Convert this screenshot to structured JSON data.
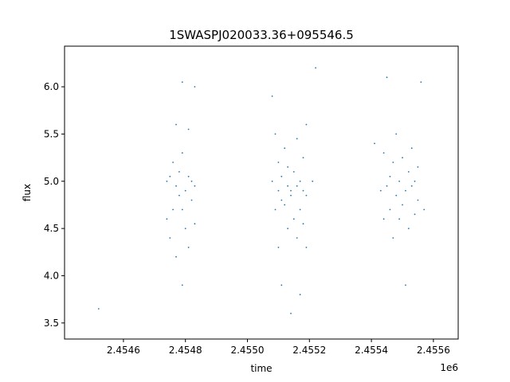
{
  "chart_data": {
    "type": "scatter",
    "title": "1SWASPJ020033.36+095546.5",
    "xlabel": "time",
    "ylabel": "flux",
    "x_offset_label": "1e6",
    "xlim": [
      2.45441,
      2.45568
    ],
    "ylim": [
      3.33,
      6.43
    ],
    "x_ticks": [
      2.4546,
      2.4548,
      2.455,
      2.4552,
      2.4554,
      2.4556
    ],
    "x_tick_labels": [
      "2.4546",
      "2.4548",
      "2.4550",
      "2.4552",
      "2.4554",
      "2.4556"
    ],
    "y_ticks": [
      3.5,
      4.0,
      4.5,
      5.0,
      5.5,
      6.0
    ],
    "y_tick_labels": [
      "3.5",
      "4.0",
      "4.5",
      "5.0",
      "5.5",
      "6.0"
    ],
    "grid": false,
    "legend": "none",
    "marker_color": "#1f77b4",
    "series": [
      {
        "x": [
          2.45452,
          2.45474,
          2.45474,
          2.45475,
          2.45475,
          2.45476,
          2.45476,
          2.45477,
          2.45477,
          2.45477,
          2.45478,
          2.45478,
          2.45479,
          2.45479,
          2.45479,
          2.45479,
          2.4548,
          2.4548,
          2.45481,
          2.45481,
          2.45481,
          2.45482,
          2.45482,
          2.45483,
          2.45483,
          2.45483,
          2.45508,
          2.45508,
          2.45509,
          2.45509,
          2.4551,
          2.4551,
          2.4551,
          2.45511,
          2.45511,
          2.45511,
          2.45512,
          2.45512,
          2.45513,
          2.45513,
          2.45513,
          2.45514,
          2.45514,
          2.45514,
          2.45515,
          2.45515,
          2.45516,
          2.45516,
          2.45516,
          2.45517,
          2.45517,
          2.45517,
          2.45518,
          2.45518,
          2.45518,
          2.45519,
          2.45519,
          2.45519,
          2.45521,
          2.45522,
          2.45541,
          2.45543,
          2.45544,
          2.45544,
          2.45545,
          2.45545,
          2.45546,
          2.45546,
          2.45547,
          2.45547,
          2.45548,
          2.45548,
          2.45549,
          2.45549,
          2.4555,
          2.4555,
          2.45551,
          2.45551,
          2.45552,
          2.45552,
          2.45553,
          2.45553,
          2.45554,
          2.45554,
          2.45555,
          2.45555,
          2.45556,
          2.45557
        ],
        "y": [
          3.65,
          5.0,
          4.6,
          5.05,
          4.4,
          5.2,
          4.7,
          4.95,
          5.6,
          4.2,
          4.85,
          5.1,
          4.7,
          5.3,
          3.9,
          6.05,
          4.9,
          4.5,
          5.05,
          5.55,
          4.3,
          4.8,
          5.0,
          4.95,
          4.55,
          6.0,
          5.0,
          5.9,
          4.7,
          5.5,
          4.9,
          4.3,
          5.2,
          4.8,
          3.9,
          5.05,
          4.75,
          5.35,
          4.95,
          4.5,
          5.15,
          4.85,
          3.6,
          4.9,
          5.1,
          4.6,
          4.95,
          5.45,
          4.4,
          5.0,
          4.7,
          3.8,
          4.9,
          5.25,
          4.55,
          4.85,
          5.6,
          4.3,
          5.0,
          6.2,
          5.4,
          4.9,
          4.6,
          5.3,
          4.95,
          6.1,
          4.7,
          5.05,
          4.4,
          5.2,
          4.85,
          5.5,
          4.6,
          5.0,
          4.75,
          5.25,
          3.9,
          4.9,
          5.1,
          4.5,
          4.95,
          5.35,
          4.65,
          5.0,
          4.8,
          5.15,
          6.05,
          4.7
        ]
      }
    ]
  }
}
